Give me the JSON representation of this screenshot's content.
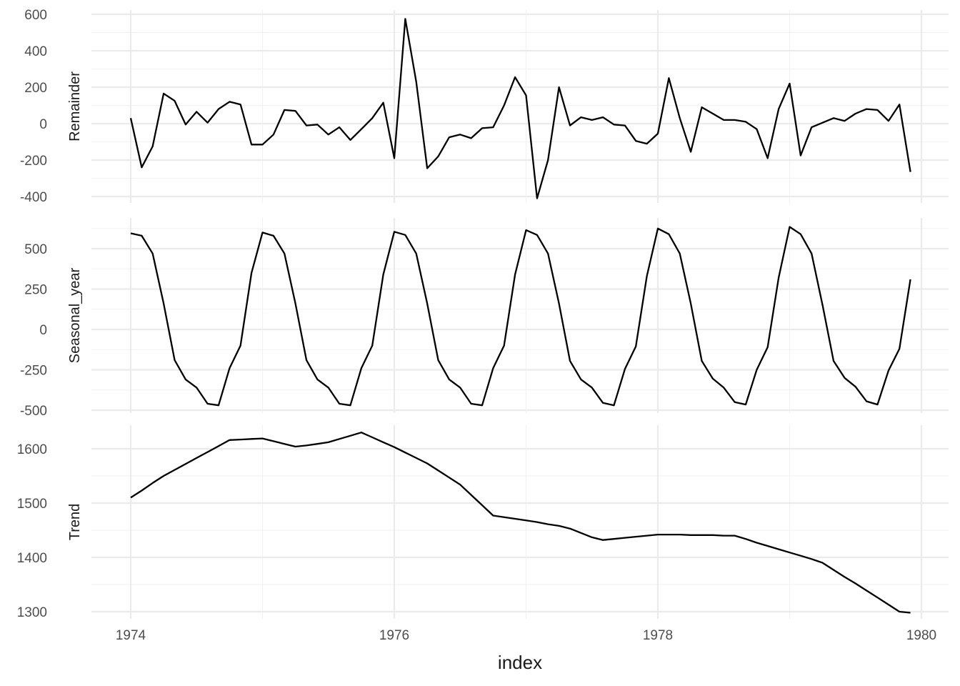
{
  "chart_data": {
    "type": "line",
    "xlabel": "index",
    "x_start": 1974.0,
    "x_step": 0.0833333,
    "xlim": [
      1974,
      1980
    ],
    "x_ticks": [
      1974,
      1976,
      1978,
      1980
    ],
    "x_tick_labels": [
      "1974",
      "1976",
      "1978",
      "1980"
    ],
    "grid": true,
    "panels": [
      {
        "name": "Remainder",
        "ylabel": "Remainder",
        "y_ticks": [
          -400,
          -200,
          0,
          200,
          400,
          600
        ],
        "y_tick_labels": [
          "-400",
          "-200",
          "0",
          "200",
          "400",
          "600"
        ],
        "values": [
          30,
          -240,
          -125,
          165,
          125,
          -5,
          65,
          5,
          80,
          120,
          105,
          -115,
          -115,
          -60,
          75,
          70,
          -10,
          -5,
          -60,
          -20,
          -90,
          -30,
          30,
          115,
          -190,
          575,
          230,
          -245,
          -180,
          -75,
          -60,
          -80,
          -25,
          -20,
          100,
          255,
          155,
          -410,
          -200,
          200,
          -10,
          35,
          20,
          35,
          -5,
          -10,
          -95,
          -110,
          -55,
          250,
          30,
          -155,
          90,
          55,
          20,
          20,
          10,
          -30,
          -190,
          80,
          220,
          -175,
          -20,
          5,
          30,
          15,
          55,
          80,
          75,
          15,
          105,
          -265
        ]
      },
      {
        "name": "Seasonal_year",
        "ylabel": "Seasonal_year",
        "y_ticks": [
          -500,
          -250,
          0,
          250,
          500
        ],
        "y_tick_labels": [
          "-500",
          "-250",
          "0",
          "250",
          "500"
        ],
        "values": [
          595,
          580,
          470,
          160,
          -190,
          -310,
          -360,
          -460,
          -470,
          -240,
          -100,
          350,
          600,
          580,
          470,
          160,
          -190,
          -310,
          -360,
          -460,
          -470,
          -240,
          -100,
          340,
          605,
          585,
          470,
          160,
          -190,
          -310,
          -360,
          -460,
          -470,
          -240,
          -100,
          340,
          615,
          585,
          470,
          160,
          -195,
          -310,
          -360,
          -455,
          -470,
          -245,
          -105,
          330,
          625,
          590,
          470,
          160,
          -195,
          -305,
          -360,
          -450,
          -465,
          -250,
          -110,
          320,
          635,
          590,
          470,
          150,
          -195,
          -300,
          -355,
          -445,
          -465,
          -255,
          -120,
          310
        ]
      },
      {
        "name": "Trend",
        "ylabel": "Trend",
        "y_ticks": [
          1300,
          1400,
          1500,
          1600
        ],
        "y_tick_labels": [
          "1300",
          "1400",
          "1500",
          "1600"
        ],
        "values": [
          1510,
          1523,
          1537,
          1550,
          1561,
          1572,
          1583,
          1594,
          1605,
          1616,
          1617,
          1618,
          1619,
          1614,
          1609,
          1604,
          1606,
          1609,
          1612,
          1618,
          1624,
          1630,
          1621,
          1612,
          1603,
          1593,
          1583,
          1573,
          1560,
          1547,
          1534,
          1515,
          1496,
          1477,
          1474,
          1471,
          1468,
          1465,
          1461,
          1458,
          1453,
          1445,
          1437,
          1432,
          1434,
          1436,
          1438,
          1440,
          1442,
          1442,
          1442,
          1441,
          1441,
          1441,
          1440,
          1440,
          1434,
          1427,
          1421,
          1415,
          1409,
          1403,
          1397,
          1390,
          1377,
          1364,
          1352,
          1339,
          1326,
          1313,
          1300,
          1298
        ]
      }
    ]
  }
}
